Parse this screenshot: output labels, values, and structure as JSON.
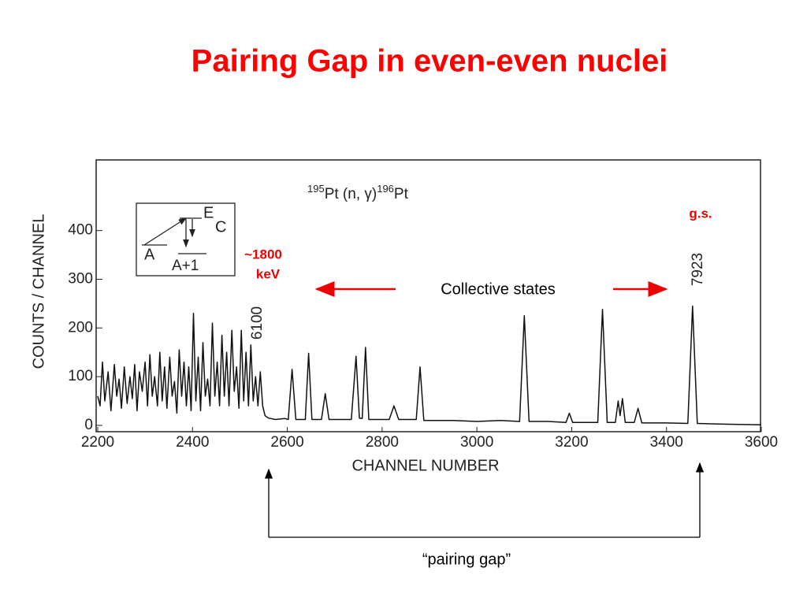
{
  "chart_data": {
    "type": "line",
    "title": "Pairing Gap in even-even nuclei",
    "x_label": "CHANNEL NUMBER",
    "y_label": "COUNTS / CHANNEL",
    "reaction": {
      "mass_in": "195",
      "text": "Pt (n, γ)",
      "mass_out": "196",
      "element": "Pt"
    },
    "color": "#111111",
    "x": [
      2200,
      2205,
      2210,
      2215,
      2222,
      2228,
      2235,
      2240,
      2245,
      2250,
      2256,
      2262,
      2268,
      2273,
      2278,
      2283,
      2288,
      2294,
      2300,
      2305,
      2310,
      2315,
      2320,
      2326,
      2331,
      2336,
      2341,
      2346,
      2352,
      2357,
      2362,
      2367,
      2372,
      2377,
      2382,
      2387,
      2392,
      2397,
      2402,
      2407,
      2412,
      2417,
      2422,
      2427,
      2432,
      2437,
      2442,
      2447,
      2452,
      2457,
      2462,
      2467,
      2472,
      2477,
      2483,
      2488,
      2493,
      2498,
      2503,
      2508,
      2513,
      2518,
      2523,
      2528,
      2533,
      2538,
      2543,
      2548,
      2553,
      2560,
      2575,
      2595,
      2602,
      2610,
      2618,
      2638,
      2645,
      2652,
      2672,
      2680,
      2688,
      2735,
      2745,
      2752,
      2758,
      2765,
      2772,
      2815,
      2825,
      2835,
      2872,
      2880,
      2888,
      2950,
      3000,
      3050,
      3090,
      3100,
      3110,
      3150,
      3188,
      3195,
      3202,
      3255,
      3265,
      3275,
      3292,
      3298,
      3302,
      3307,
      3313,
      3332,
      3340,
      3348,
      3400,
      3445,
      3455,
      3465,
      3500,
      3550,
      3600
    ],
    "values": [
      60,
      40,
      130,
      50,
      110,
      30,
      125,
      60,
      95,
      35,
      120,
      45,
      100,
      55,
      125,
      30,
      110,
      70,
      130,
      40,
      145,
      60,
      100,
      40,
      150,
      50,
      120,
      35,
      140,
      60,
      90,
      25,
      155,
      60,
      130,
      40,
      120,
      30,
      230,
      50,
      140,
      30,
      170,
      60,
      95,
      40,
      210,
      60,
      130,
      40,
      185,
      60,
      150,
      40,
      195,
      70,
      120,
      35,
      195,
      50,
      150,
      40,
      165,
      50,
      100,
      40,
      110,
      40,
      20,
      15,
      12,
      14,
      12,
      115,
      12,
      12,
      148,
      12,
      12,
      65,
      12,
      12,
      142,
      15,
      14,
      160,
      12,
      12,
      40,
      12,
      12,
      120,
      10,
      10,
      8,
      10,
      8,
      225,
      8,
      8,
      6,
      25,
      6,
      6,
      238,
      6,
      6,
      50,
      20,
      55,
      6,
      6,
      35,
      5,
      5,
      4,
      245,
      4,
      3,
      2,
      1
    ],
    "xlim": [
      2200,
      3600
    ],
    "ylim": [
      -13,
      545
    ],
    "xticks": [
      2200,
      2400,
      2600,
      2800,
      3000,
      3200,
      3400,
      3600
    ],
    "yticks": [
      0,
      100,
      200,
      300,
      400
    ]
  },
  "annotations": {
    "peak_low": "6100",
    "peak_high": "7923",
    "energy": "~1800",
    "energy_unit": "keV",
    "ground_state": "g.s.",
    "collective": "Collective states",
    "gap": "“pairing gap”",
    "inset": {
      "e": "E",
      "c": "C",
      "a": "A",
      "a1": "A+1"
    }
  }
}
